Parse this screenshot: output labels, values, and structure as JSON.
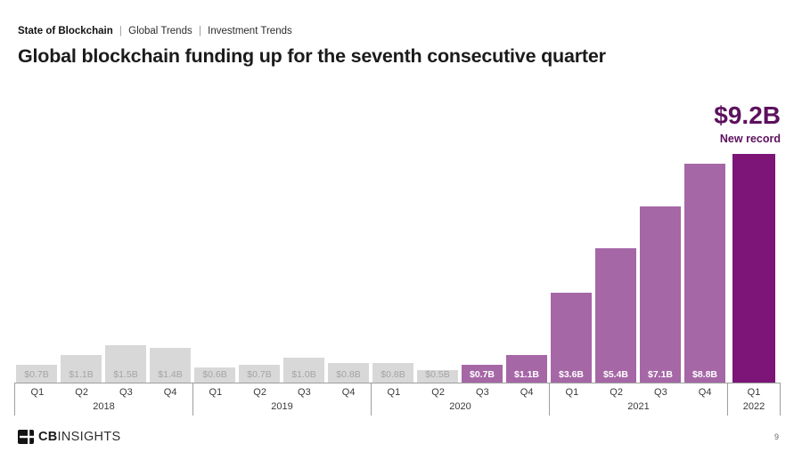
{
  "breadcrumb": {
    "section": "State of Blockchain",
    "separator": "|",
    "item1": "Global Trends",
    "item2": "Investment Trends"
  },
  "title": "Global blockchain funding up for the seventh consecutive quarter",
  "annotation": {
    "value": "$9.2B",
    "caption": "New record"
  },
  "chart_data": {
    "type": "bar",
    "title": "Global blockchain funding up for the seventh consecutive quarter",
    "xlabel": "",
    "ylabel": "",
    "ylim": [
      0,
      9.2
    ],
    "grid": false,
    "legend": false,
    "categories": [
      "Q1 2018",
      "Q2 2018",
      "Q3 2018",
      "Q4 2018",
      "Q1 2019",
      "Q2 2019",
      "Q3 2019",
      "Q4 2019",
      "Q1 2020",
      "Q2 2020",
      "Q3 2020",
      "Q4 2020",
      "Q1 2021",
      "Q2 2021",
      "Q3 2021",
      "Q4 2021",
      "Q1 2022"
    ],
    "values": [
      0.7,
      1.1,
      1.5,
      1.4,
      0.6,
      0.7,
      1.0,
      0.8,
      0.8,
      0.5,
      0.7,
      1.1,
      3.6,
      5.4,
      7.1,
      8.8,
      9.2
    ],
    "groups": [
      {
        "year": "2018",
        "bars": [
          {
            "quarter": "Q1",
            "value": 0.7,
            "label": "$0.7B",
            "style": "gray"
          },
          {
            "quarter": "Q2",
            "value": 1.1,
            "label": "$1.1B",
            "style": "gray"
          },
          {
            "quarter": "Q3",
            "value": 1.5,
            "label": "$1.5B",
            "style": "gray"
          },
          {
            "quarter": "Q4",
            "value": 1.4,
            "label": "$1.4B",
            "style": "gray"
          }
        ]
      },
      {
        "year": "2019",
        "bars": [
          {
            "quarter": "Q1",
            "value": 0.6,
            "label": "$0.6B",
            "style": "gray"
          },
          {
            "quarter": "Q2",
            "value": 0.7,
            "label": "$0.7B",
            "style": "gray"
          },
          {
            "quarter": "Q3",
            "value": 1.0,
            "label": "$1.0B",
            "style": "gray"
          },
          {
            "quarter": "Q4",
            "value": 0.8,
            "label": "$0.8B",
            "style": "gray"
          }
        ]
      },
      {
        "year": "2020",
        "bars": [
          {
            "quarter": "Q1",
            "value": 0.8,
            "label": "$0.8B",
            "style": "gray"
          },
          {
            "quarter": "Q2",
            "value": 0.5,
            "label": "$0.5B",
            "style": "gray"
          },
          {
            "quarter": "Q3",
            "value": 0.7,
            "label": "$0.7B",
            "style": "purple"
          },
          {
            "quarter": "Q4",
            "value": 1.1,
            "label": "$1.1B",
            "style": "purple"
          }
        ]
      },
      {
        "year": "2021",
        "bars": [
          {
            "quarter": "Q1",
            "value": 3.6,
            "label": "$3.6B",
            "style": "purple"
          },
          {
            "quarter": "Q2",
            "value": 5.4,
            "label": "$5.4B",
            "style": "purple"
          },
          {
            "quarter": "Q3",
            "value": 7.1,
            "label": "$7.1B",
            "style": "purple"
          },
          {
            "quarter": "Q4",
            "value": 8.8,
            "label": "$8.8B",
            "style": "purple"
          }
        ]
      },
      {
        "year": "2022",
        "bars": [
          {
            "quarter": "Q1",
            "value": 9.2,
            "label": "",
            "style": "dark"
          }
        ]
      }
    ]
  },
  "colors": {
    "gray_bar": "#d8d8d8",
    "gray_label": "#a4a4a4",
    "purple_bar": "#a667a6",
    "dark_purple_bar": "#7d1478",
    "annotation_text": "#5c115e",
    "axis_line": "#9e9e9e"
  },
  "footer": {
    "logo_strong": "CB",
    "logo_rest": "INSIGHTS",
    "page": "9"
  }
}
